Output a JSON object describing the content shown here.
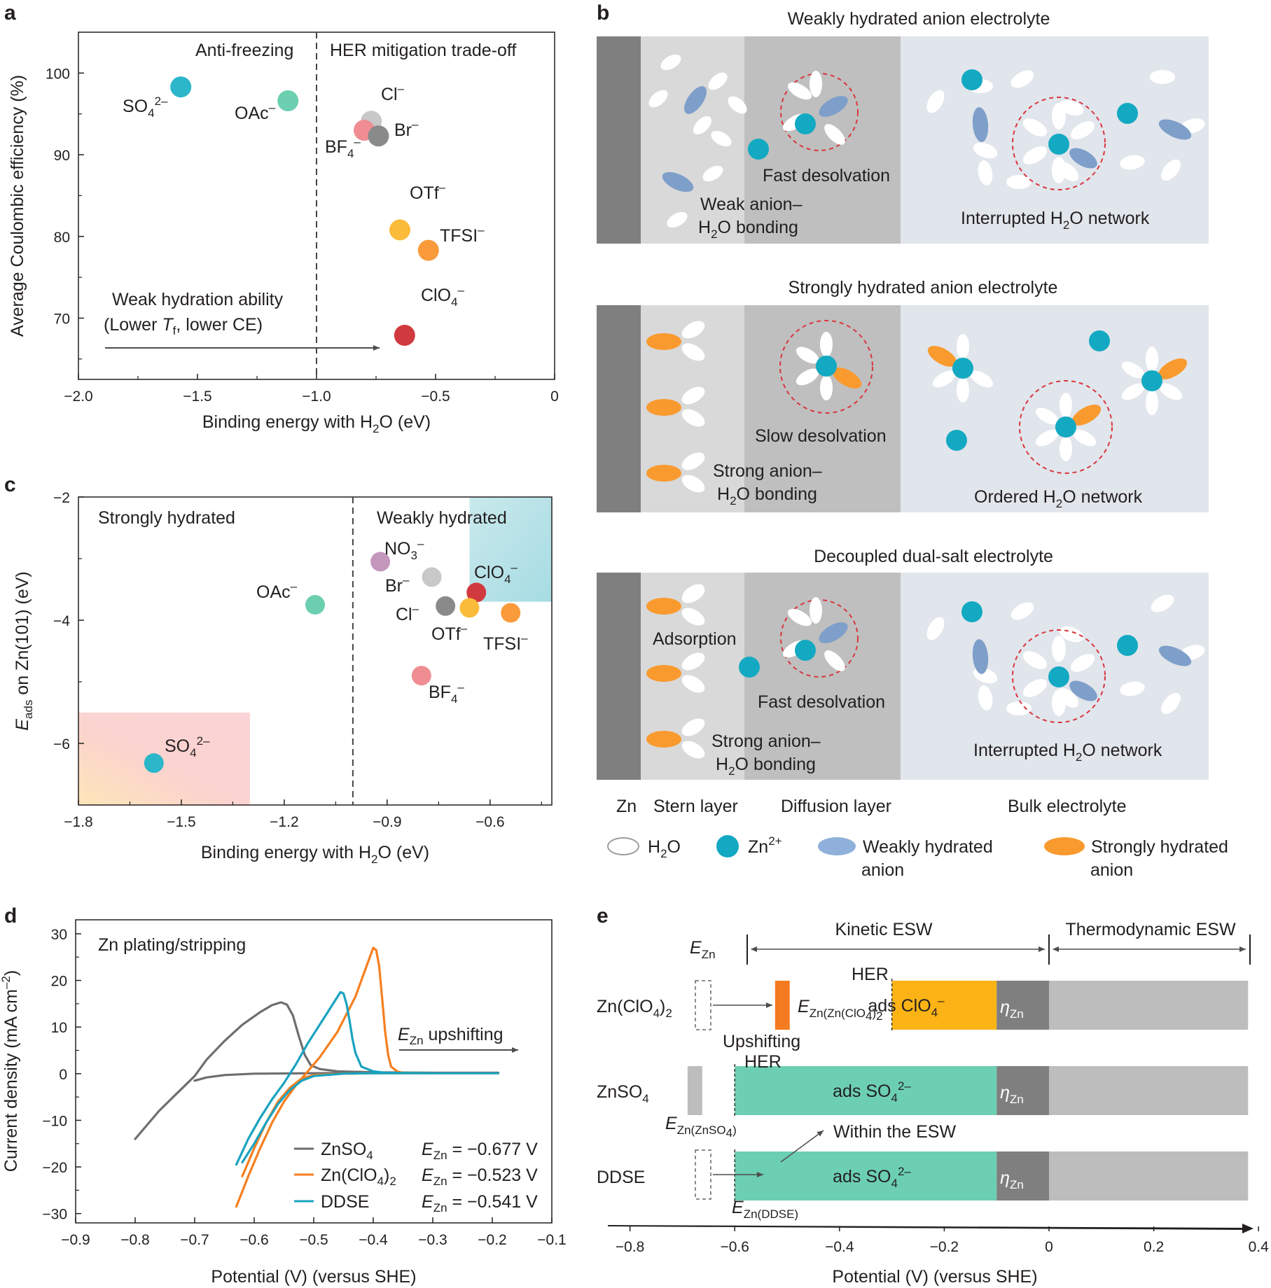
{
  "chart_data": [
    {
      "panel": "a",
      "type": "scatter",
      "xlabel": "Binding energy with H2O (eV)",
      "ylabel": "Average Coulombic efficiency (%)",
      "xlim": [
        -2.0,
        0
      ],
      "ylim": [
        62.5,
        105
      ],
      "xticks": [
        -2.0,
        -1.5,
        -1.0,
        -0.5,
        0
      ],
      "yticks": [
        70,
        80,
        90,
        100
      ],
      "points": [
        {
          "name": "SO4 2-",
          "x": -1.57,
          "y": 98.3,
          "color": "#2bb7c9"
        },
        {
          "name": "OAc-",
          "x": -1.12,
          "y": 96.6,
          "color": "#6ccfb0"
        },
        {
          "name": "Cl-",
          "x": -0.77,
          "y": 94.1,
          "color": "#c8c8c8"
        },
        {
          "name": "BF4-",
          "x": -0.8,
          "y": 93.0,
          "color": "#ef8d93"
        },
        {
          "name": "Br-",
          "x": -0.74,
          "y": 92.3,
          "color": "#8a8a8a"
        },
        {
          "name": "OTf-",
          "x": -0.65,
          "y": 80.8,
          "color": "#fbbc3c"
        },
        {
          "name": "TFSI-",
          "x": -0.53,
          "y": 78.3,
          "color": "#f99a3b"
        },
        {
          "name": "ClO4-",
          "x": -0.63,
          "y": 67.9,
          "color": "#d03a3f"
        }
      ],
      "divider_x": -1.0,
      "annotations": {
        "left_top": "Anti-freezing",
        "right_top": "HER mitigation trade-off",
        "arrow_line1": "Weak hydration ability",
        "arrow_line2_a": "(Lower ",
        "arrow_line2_b": ", lower CE)"
      }
    },
    {
      "panel": "c",
      "type": "scatter",
      "xlabel": "Binding energy with H2O (eV)",
      "ylabel": "Eads on Zn(101) (eV)",
      "xlim": [
        -1.8,
        -0.42
      ],
      "ylim": [
        -7,
        -2
      ],
      "xticks": [
        -1.8,
        -1.5,
        -1.2,
        -0.9,
        -0.6
      ],
      "yticks": [
        -2,
        -4,
        -6
      ],
      "points": [
        {
          "name": "SO4 2-",
          "x": -1.58,
          "y": -6.32,
          "color": "#2bb7c9"
        },
        {
          "name": "OAc-",
          "x": -1.11,
          "y": -3.75,
          "color": "#6ccfb0"
        },
        {
          "name": "NO3-",
          "x": -0.92,
          "y": -3.05,
          "color": "#c497bd"
        },
        {
          "name": "Br-",
          "x": -0.77,
          "y": -3.3,
          "color": "#c8c8c8"
        },
        {
          "name": "ClO4-",
          "x": -0.64,
          "y": -3.55,
          "color": "#d03a3f"
        },
        {
          "name": "Cl-",
          "x": -0.73,
          "y": -3.77,
          "color": "#8a8a8a"
        },
        {
          "name": "OTf-",
          "x": -0.66,
          "y": -3.8,
          "color": "#fbbc3c"
        },
        {
          "name": "TFSI-",
          "x": -0.54,
          "y": -3.88,
          "color": "#f99a3b"
        },
        {
          "name": "BF4-",
          "x": -0.8,
          "y": -4.9,
          "color": "#ef8d93"
        }
      ],
      "divider_x": -1.0,
      "regions": [
        {
          "name": "strong-region",
          "xlim": [
            -1.8,
            -1.3
          ],
          "ylim": [
            -7,
            -5.5
          ]
        },
        {
          "name": "weak-region",
          "xlim": [
            -0.66,
            -0.42
          ],
          "ylim": [
            -3.7,
            -2
          ]
        }
      ],
      "annotations": {
        "left": "Strongly hydrated",
        "right": "Weakly hydrated"
      }
    },
    {
      "panel": "d",
      "type": "line",
      "xlabel": "Potential (V) (versus SHE)",
      "ylabel": "Current density (mA cm-2)",
      "xlim": [
        -0.9,
        -0.1
      ],
      "ylim": [
        -32,
        33
      ],
      "xticks": [
        -0.9,
        -0.8,
        -0.7,
        -0.6,
        -0.5,
        -0.4,
        -0.3,
        -0.2,
        -0.1
      ],
      "yticks": [
        30,
        20,
        10,
        0,
        -10,
        -20,
        -30
      ],
      "series": [
        {
          "name": "ZnSO4",
          "color": "#6d6e70",
          "ezn": "EZn = -0.677 V",
          "x": [
            -0.8,
            -0.76,
            -0.72,
            -0.7,
            -0.68,
            -0.65,
            -0.62,
            -0.59,
            -0.57,
            -0.555,
            -0.545,
            -0.535,
            -0.525,
            -0.515,
            -0.505,
            -0.49,
            -0.46,
            -0.4,
            -0.3,
            -0.2,
            -0.19,
            -0.3,
            -0.4,
            -0.5,
            -0.6,
            -0.65,
            -0.68,
            -0.7
          ],
          "y": [
            -14,
            -8,
            -3,
            -0.5,
            3,
            7,
            10.5,
            13.2,
            14.7,
            15.3,
            14.8,
            12.5,
            8,
            4,
            1.8,
            1,
            0.5,
            0.3,
            0.2,
            0.2,
            0.2,
            0.2,
            0.2,
            0.1,
            0,
            -0.3,
            -0.8,
            -1.5
          ]
        },
        {
          "name": "Zn(ClO4)2",
          "color": "#f57f20",
          "ezn": "EZn = -0.523 V",
          "x": [
            -0.63,
            -0.61,
            -0.59,
            -0.57,
            -0.55,
            -0.53,
            -0.51,
            -0.49,
            -0.46,
            -0.43,
            -0.41,
            -0.4,
            -0.395,
            -0.39,
            -0.385,
            -0.38,
            -0.375,
            -0.37,
            -0.36,
            -0.35,
            -0.3,
            -0.2,
            -0.19,
            -0.3,
            -0.4,
            -0.45,
            -0.5,
            -0.52,
            -0.54,
            -0.56,
            -0.58,
            -0.6,
            -0.62
          ],
          "y": [
            -28.5,
            -22,
            -16,
            -10.5,
            -6,
            -2.5,
            0.5,
            3.5,
            9,
            16.5,
            23.5,
            27,
            26.5,
            23,
            16,
            9,
            4,
            1.5,
            0.5,
            0.2,
            0.1,
            0.1,
            0.1,
            0.1,
            0.1,
            0,
            -0.3,
            -1,
            -3,
            -6,
            -10.5,
            -16,
            -22
          ]
        },
        {
          "name": "DDSE",
          "color": "#19a3c0",
          "ezn": "EZn = -0.541 V",
          "x": [
            -0.63,
            -0.61,
            -0.59,
            -0.57,
            -0.55,
            -0.53,
            -0.51,
            -0.5,
            -0.48,
            -0.46,
            -0.455,
            -0.45,
            -0.445,
            -0.44,
            -0.435,
            -0.43,
            -0.42,
            -0.4,
            -0.38,
            -0.3,
            -0.2,
            -0.19,
            -0.3,
            -0.4,
            -0.45,
            -0.5,
            -0.52,
            -0.54,
            -0.56,
            -0.58,
            -0.6,
            -0.62
          ],
          "y": [
            -19.5,
            -14,
            -9.5,
            -5.5,
            -2,
            2,
            6.5,
            8.5,
            12.5,
            16.5,
            17.5,
            17.2,
            15,
            11.5,
            7.5,
            4.5,
            1.5,
            0.5,
            0.2,
            0.1,
            0.1,
            0.1,
            0.1,
            0.1,
            0,
            -0.5,
            -1.5,
            -3.5,
            -6.5,
            -10.5,
            -15,
            -19
          ]
        }
      ],
      "annotations": {
        "title": "Zn plating/stripping",
        "arrow_text_b": " upshifting"
      }
    },
    {
      "panel": "e",
      "type": "bar",
      "xlabel": "Potential (V) (versus SHE)",
      "xlim": [
        -0.82,
        0.4
      ],
      "xticks": [
        -0.8,
        -0.6,
        -0.4,
        -0.2,
        0,
        0.2,
        0.4
      ],
      "rows": [
        {
          "name": "Zn(ClO4)2",
          "segments": [
            {
              "label": "E_Zn(Zn(ClO4)2)",
              "from": -0.523,
              "to": -0.495,
              "color": "#f47b20"
            },
            {
              "label": "ads ClO4-",
              "from": -0.3,
              "to": -0.1,
              "color": "#fcb316"
            },
            {
              "label": "eta_Zn",
              "from": -0.1,
              "to": 0,
              "color": "#7f7f7f"
            },
            {
              "label": "",
              "from": 0,
              "to": 0.38,
              "color": "#bdbdbd"
            }
          ]
        },
        {
          "name": "ZnSO4",
          "segments": [
            {
              "label": "E_Zn(ZnSO4)",
              "from": -0.69,
              "to": -0.662,
              "color": "#bdbdbd"
            },
            {
              "label": "ads SO4 2-",
              "from": -0.6,
              "to": -0.1,
              "color": "#6ccfb3"
            },
            {
              "label": "eta_Zn",
              "from": -0.1,
              "to": 0,
              "color": "#7f7f7f"
            },
            {
              "label": "",
              "from": 0,
              "to": 0.38,
              "color": "#bdbdbd"
            }
          ]
        },
        {
          "name": "DDSE",
          "segments": [
            {
              "label": "E_Zn(DDSE)",
              "from": -0.541,
              "to": -0.513,
              "color": "#19b3c9"
            },
            {
              "label": "ads SO4 2-",
              "from": -0.6,
              "to": -0.1,
              "color": "#6ccfb3"
            },
            {
              "label": "eta_Zn",
              "from": -0.1,
              "to": 0,
              "color": "#7f7f7f"
            },
            {
              "label": "",
              "from": 0,
              "to": 0.38,
              "color": "#bdbdbd"
            }
          ]
        }
      ],
      "annotations": {
        "kinetic": "Kinetic ESW",
        "thermodynamic": "Thermodynamic ESW",
        "her": "HER",
        "upshifting": "Upshifting",
        "within": "Within the ESW"
      }
    }
  ],
  "schematic_b": {
    "titles": [
      "Weakly hydrated anion electrolyte",
      "Strongly hydrated anion electrolyte",
      "Decoupled dual-salt electrolyte"
    ],
    "row1": {
      "stern": "Weak anion–",
      "stern2": "bonding",
      "diff": "Fast desolvation",
      "bulk_a": "Interrupted H",
      "bulk_b": "O network"
    },
    "row2": {
      "stern": "Strong anion–",
      "stern2": "bonding",
      "diff": "Slow desolvation",
      "bulk_a": "Ordered H",
      "bulk_b": "O network"
    },
    "row3": {
      "adsorption": "Adsorption",
      "stern": "Strong anion–",
      "stern2": "bonding",
      "diff": "Fast desolvation",
      "bulk_a": "Interrupted H",
      "bulk_b": "O network"
    },
    "layers": [
      "Zn",
      "Stern layer",
      "Diffusion layer",
      "Bulk electrolyte"
    ],
    "legend": {
      "h2o": "H",
      "h2o_b": "O",
      "zn": "Zn",
      "zn_sup": "2+",
      "weak": "Weakly hydrated",
      "weak2": "anion",
      "strong": "Strongly hydrated",
      "strong2": "anion"
    },
    "colors": {
      "zn_metal": "#7f7f7f",
      "stern": "#d9d9d9",
      "diffusion": "#bfbfbf",
      "bulk": "#e1e5ec",
      "zn_ion": "#13a9c2",
      "weak_anion": "#7e9fc9",
      "strong_anion": "#f99a2f",
      "solvation_shell": "#d9363e"
    }
  },
  "panels": {
    "a": "a",
    "b": "b",
    "c": "c",
    "d": "d",
    "e": "e"
  }
}
